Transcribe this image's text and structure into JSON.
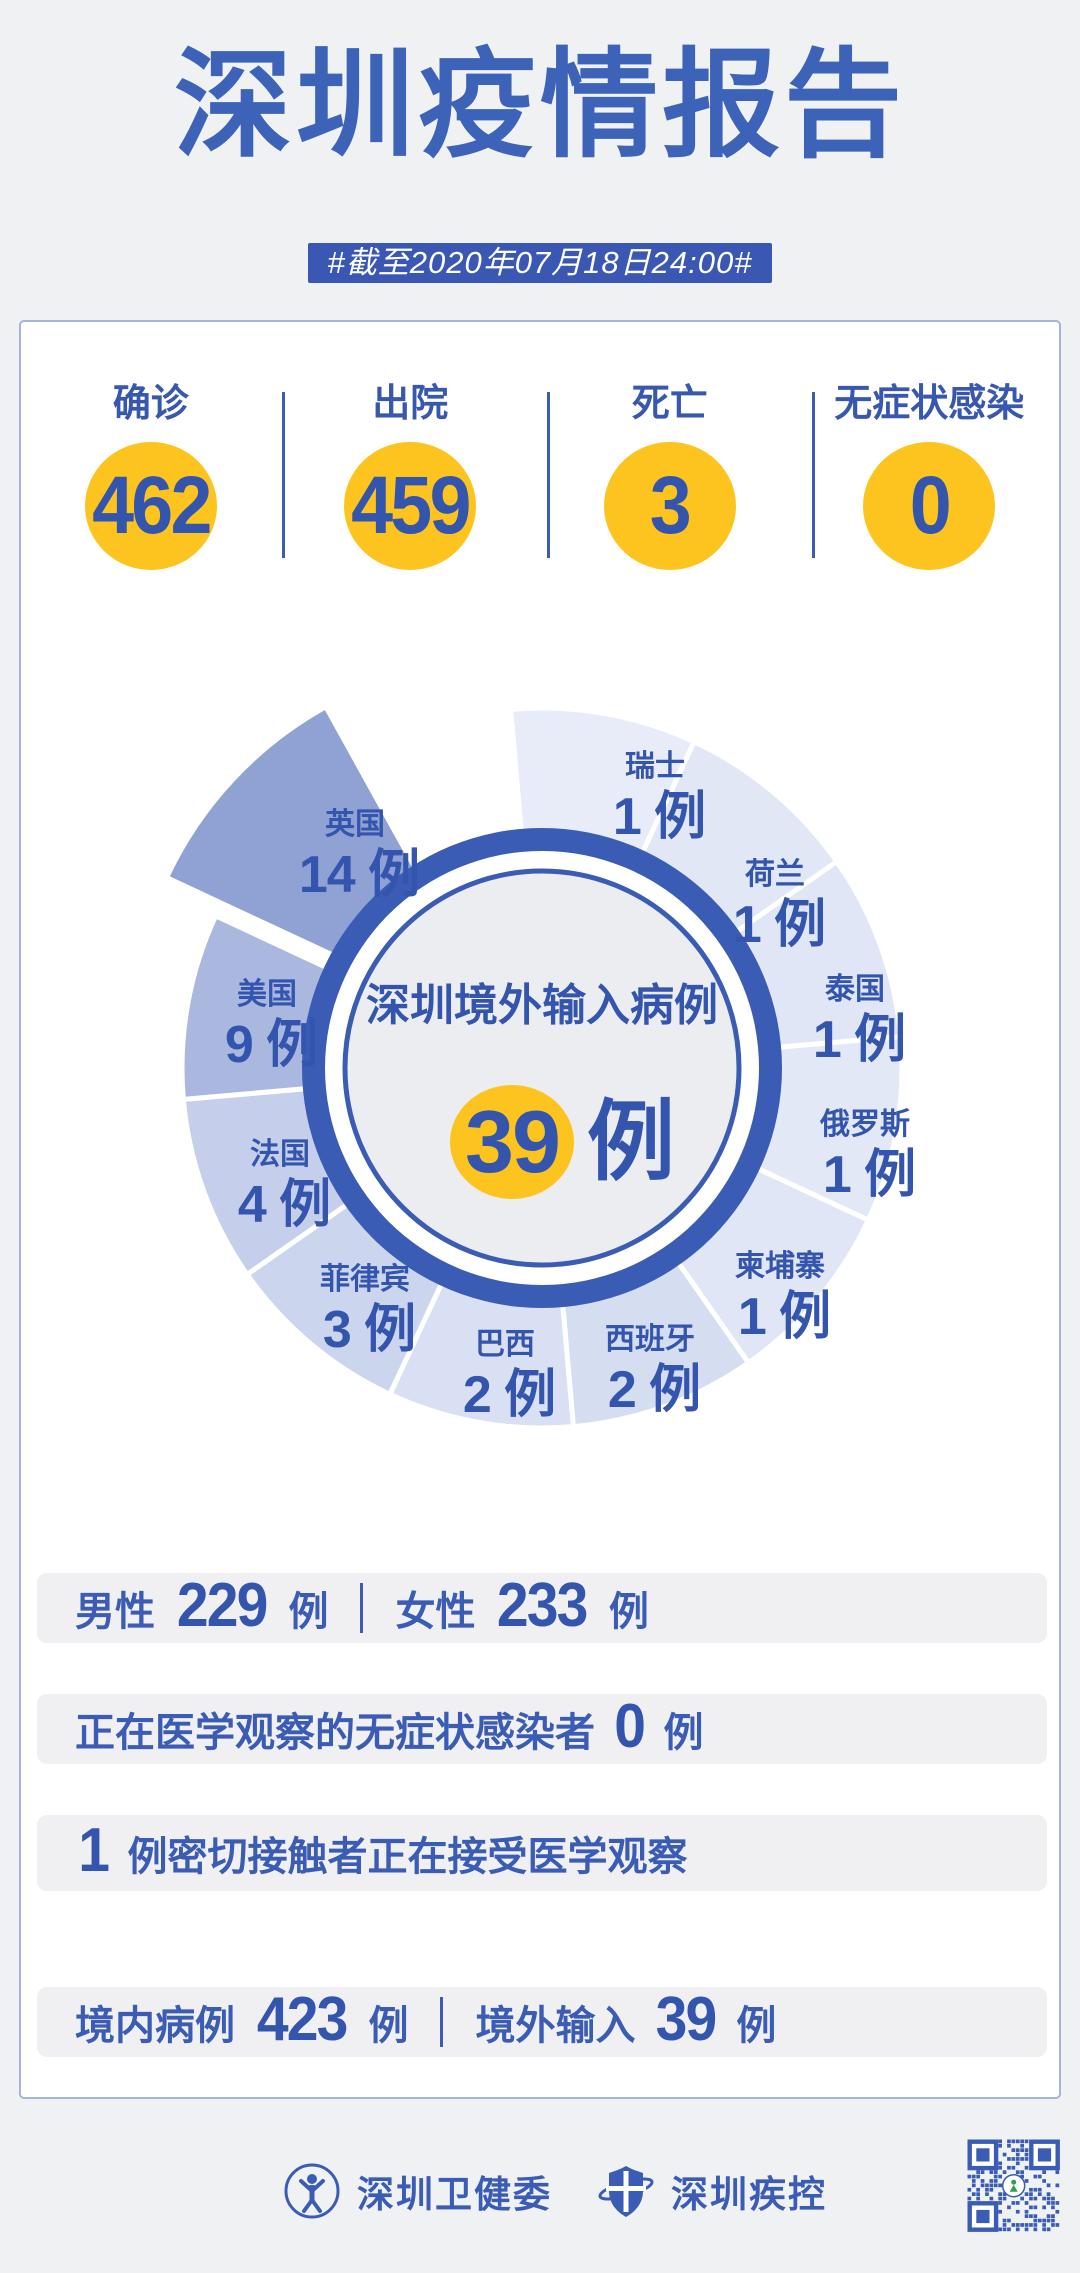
{
  "page": {
    "title": "深圳疫情报告",
    "subtitle": "#截至2020年07月18日24:00#"
  },
  "colors": {
    "accent_blue": "#3a5cb4",
    "number_blue": "#3455ae",
    "badge_blue": "#3a57b4",
    "highlight_yellow": "#fdc41f",
    "page_bg": "#f0f1f3",
    "card_bg": "#ffffff",
    "card_border": "#a6b3da"
  },
  "stats": {
    "items": [
      {
        "label": "确诊",
        "value": "462"
      },
      {
        "label": "出院",
        "value": "459"
      },
      {
        "label": "死亡",
        "value": "3"
      },
      {
        "label": "无症状感染",
        "value": "0"
      }
    ]
  },
  "chart_data": {
    "type": "pie",
    "title": "深圳境外输入病例",
    "center_value": "39",
    "unit": "例",
    "layout": "equal-angle rose pie, clockwise from top, largest slice exploded",
    "legend_position": "labels-on-slices",
    "segments": [
      {
        "name": "瑞士",
        "value": 1,
        "color": "#e8ecf8"
      },
      {
        "name": "荷兰",
        "value": 1,
        "color": "#e2e7f6"
      },
      {
        "name": "泰国",
        "value": 1,
        "color": "#e0e6f5"
      },
      {
        "name": "俄罗斯",
        "value": 1,
        "color": "#e3e8f6"
      },
      {
        "name": "柬埔寨",
        "value": 1,
        "color": "#e0e6f5"
      },
      {
        "name": "西班牙",
        "value": 2,
        "color": "#d5ddf1"
      },
      {
        "name": "巴西",
        "value": 2,
        "color": "#d9e0f3"
      },
      {
        "name": "菲律宾",
        "value": 3,
        "color": "#cbd5ee"
      },
      {
        "name": "法国",
        "value": 4,
        "color": "#c5cfeb"
      },
      {
        "name": "美国",
        "value": 9,
        "color": "#aab8e0"
      },
      {
        "name": "英国",
        "value": 14,
        "color": "#8fa2d3",
        "exploded": true
      }
    ]
  },
  "summary_rows": [
    {
      "tokens": [
        {
          "type": "label",
          "text": "男性"
        },
        {
          "type": "num",
          "text": "229"
        },
        {
          "type": "unit",
          "text": "例"
        },
        {
          "type": "divider"
        },
        {
          "type": "label",
          "text": "女性"
        },
        {
          "type": "num",
          "text": "233"
        },
        {
          "type": "unit",
          "text": "例"
        }
      ]
    },
    {
      "tokens": [
        {
          "type": "label",
          "text": "正在医学观察的无症状感染者"
        },
        {
          "type": "num",
          "text": "0"
        },
        {
          "type": "unit",
          "text": "例"
        }
      ]
    },
    {
      "tokens": [
        {
          "type": "num",
          "text": "1"
        },
        {
          "type": "label",
          "text": "例密切接触者正在接受医学观察"
        }
      ]
    },
    {
      "tokens": [
        {
          "type": "label",
          "text": "境内病例"
        },
        {
          "type": "num",
          "text": "423"
        },
        {
          "type": "unit",
          "text": "例"
        },
        {
          "type": "divider"
        },
        {
          "type": "label",
          "text": "境外输入"
        },
        {
          "type": "num",
          "text": "39"
        },
        {
          "type": "unit",
          "text": "例"
        }
      ]
    }
  ],
  "footer": {
    "org1": "深圳卫健委",
    "org2": "深圳疾控",
    "icons": {
      "org1_icon": "health-commission-emblem-icon",
      "org2_icon": "cdc-shield-icon",
      "qr": "qr-code"
    }
  }
}
